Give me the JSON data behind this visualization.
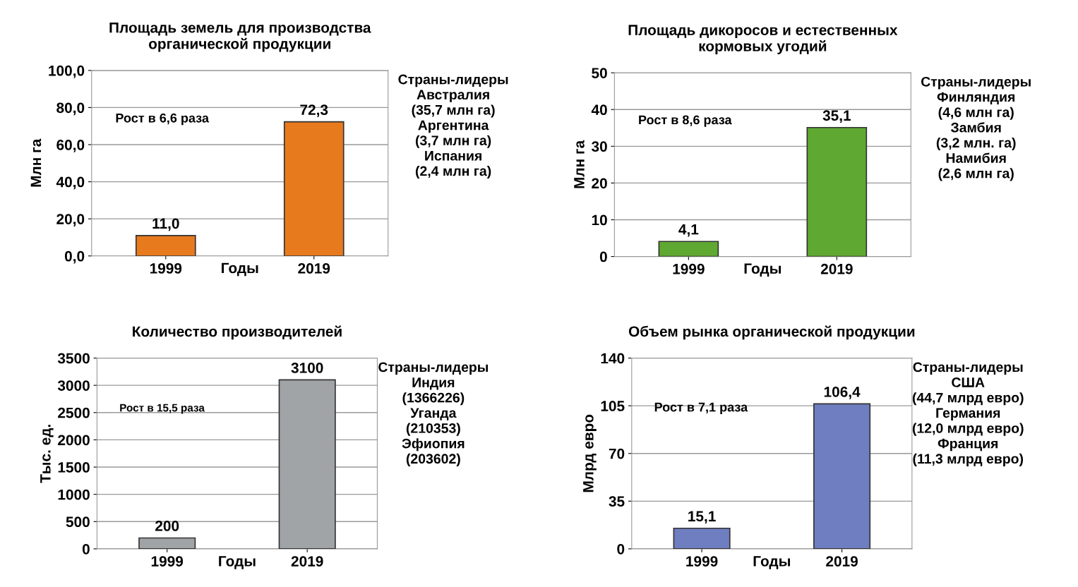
{
  "chart_data": [
    {
      "type": "bar",
      "title": "Площадь земель для производства\nорганической продукции",
      "xlabel": "Годы",
      "ylabel": "Млн га",
      "categories": [
        "1999",
        "2019"
      ],
      "values": [
        11.0,
        72.3
      ],
      "value_labels": [
        "11,0",
        "72,3"
      ],
      "color": "#e87a1e",
      "ylim": [
        0,
        100
      ],
      "yticks": [
        {
          "value": 0,
          "label": "0,0"
        },
        {
          "value": 20,
          "label": "20,0"
        },
        {
          "value": 40,
          "label": "40,0"
        },
        {
          "value": 60,
          "label": "60,0"
        },
        {
          "value": 80,
          "label": "80,0"
        },
        {
          "value": 100,
          "label": "100,0"
        }
      ],
      "grid": "y",
      "annotations": [
        "Рост в 6,6 раза",
        "Страны-лидеры\nАвстралия\n(35,7 млн га)\nАргентина\n(3,7 млн га)\nИспания\n(2,4 млн га)"
      ]
    },
    {
      "type": "bar",
      "title": "Площадь дикоросов и естественных\nкормовых угодий",
      "xlabel": "Годы",
      "ylabel": "Млн га",
      "categories": [
        "1999",
        "2019"
      ],
      "values": [
        4.1,
        35.1
      ],
      "value_labels": [
        "4,1",
        "35,1"
      ],
      "color": "#5fa832",
      "ylim": [
        0,
        50
      ],
      "yticks": [
        0,
        10,
        20,
        30,
        40,
        50
      ],
      "grid": "y",
      "annotations": [
        "Рост в 8,6 раза",
        "Страны-лидеры\nФинляндия\n(4,6 млн га)\nЗамбия\n(3,2 млн. га)\nНамибия\n(2,6 млн га)"
      ]
    },
    {
      "type": "bar",
      "title": "Количество производителей",
      "xlabel": "Годы",
      "ylabel": "Тыс. ед.",
      "categories": [
        "1999",
        "2019"
      ],
      "values": [
        200,
        3100
      ],
      "data_labels": true,
      "color": "#a0a4a6",
      "ylim": [
        0,
        3500
      ],
      "yticks": [
        0,
        500,
        1000,
        1500,
        2000,
        2500,
        3000,
        3500
      ],
      "grid": "y",
      "annotations": [
        "Рост в 15,5 раза",
        "Страны-лидеры\nИндия\n(1366226)\nУганда\n(210353)\nЭфиопия\n(203602)"
      ]
    },
    {
      "type": "bar",
      "title": "Объем рынка органической продукции",
      "xlabel": "Годы",
      "ylabel": "Млрд евро",
      "categories": [
        "1999",
        "2019"
      ],
      "values": [
        15.1,
        106.4
      ],
      "value_labels": [
        "15,1",
        "106,4"
      ],
      "color": "#6f7ec0",
      "ylim": [
        0,
        140
      ],
      "yticks": [
        0,
        35,
        70,
        105,
        140
      ],
      "grid": "y",
      "annotations": [
        "Рост в 7,1 раза",
        "Страны-лидеры\nСША\n(44,7 млрд евро)\nГермания\n(12,0 млрд евро)\nФранция\n(11,3 млрд евро)"
      ]
    }
  ]
}
